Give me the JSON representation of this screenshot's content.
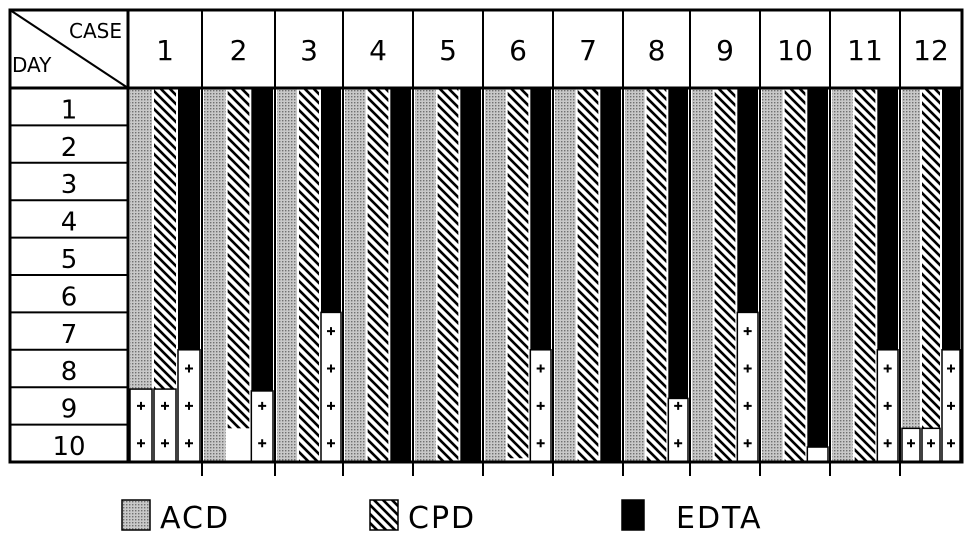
{
  "chart_data": {
    "type": "bar",
    "corner_header": {
      "column_label": "CASE",
      "row_label": "DAY"
    },
    "cases": [
      "1",
      "2",
      "3",
      "4",
      "5",
      "6",
      "7",
      "8",
      "9",
      "10",
      "11",
      "12"
    ],
    "days": [
      "1",
      "2",
      "3",
      "4",
      "5",
      "6",
      "7",
      "8",
      "9",
      "10"
    ],
    "series": [
      {
        "name": "ACD",
        "pattern": "dotted-gray",
        "bar_end_day": [
          8.05,
          10,
          10,
          10,
          10,
          10,
          10,
          10,
          10,
          10,
          10,
          9.1
        ],
        "plus_from_day": [
          8.05,
          null,
          null,
          null,
          null,
          null,
          null,
          null,
          null,
          null,
          null,
          9.1
        ]
      },
      {
        "name": "CPD",
        "pattern": "diagonal-hatch",
        "bar_end_day": [
          8.05,
          9.1,
          10,
          10,
          10,
          9.9,
          10,
          10,
          10,
          10,
          10,
          9.1
        ],
        "plus_from_day": [
          8.05,
          null,
          null,
          null,
          null,
          null,
          null,
          null,
          10,
          null,
          null,
          9.1
        ]
      },
      {
        "name": "EDTA",
        "pattern": "solid-black",
        "bar_end_day": [
          7.0,
          8.1,
          6.0,
          10,
          10,
          7.0,
          10,
          8.3,
          6.0,
          9.6,
          7.0,
          7.0
        ],
        "plus_from_day": [
          7.0,
          8.1,
          6.0,
          null,
          null,
          7.0,
          null,
          8.3,
          6.0,
          9.6,
          7.0,
          7.0
        ]
      }
    ],
    "legend": [
      "ACD",
      "CPD",
      "EDTA"
    ],
    "legend_position": "bottom",
    "grid": true
  }
}
